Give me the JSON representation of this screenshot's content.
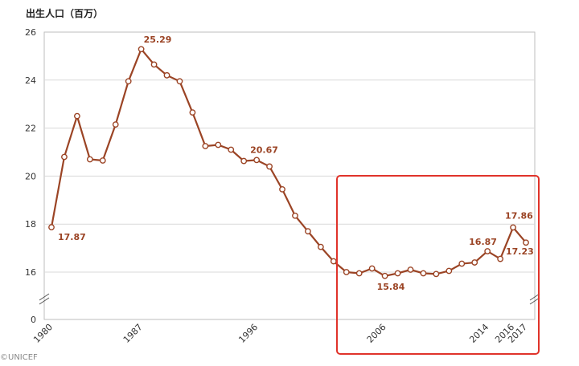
{
  "chart_data": {
    "type": "line",
    "ylabel": "出生人口（百万）",
    "x": [
      1980,
      1981,
      1982,
      1983,
      1984,
      1985,
      1986,
      1987,
      1988,
      1989,
      1990,
      1991,
      1992,
      1993,
      1994,
      1995,
      1996,
      1997,
      1998,
      1999,
      2000,
      2001,
      2002,
      2003,
      2004,
      2005,
      2006,
      2007,
      2008,
      2009,
      2010,
      2011,
      2012,
      2013,
      2014,
      2015,
      2016,
      2017
    ],
    "series": [
      {
        "values": [
          17.87,
          20.8,
          22.5,
          20.7,
          20.65,
          22.15,
          23.95,
          25.29,
          24.65,
          24.2,
          23.95,
          22.65,
          21.25,
          21.3,
          21.1,
          20.63,
          20.67,
          20.4,
          19.45,
          18.35,
          17.7,
          17.05,
          16.45,
          16.0,
          15.95,
          16.15,
          15.84,
          15.95,
          16.1,
          15.95,
          15.92,
          16.05,
          16.35,
          16.4,
          16.87,
          16.55,
          17.86,
          17.23
        ],
        "color": "#9b4425"
      }
    ],
    "x_tick_labels": [
      "1980",
      "1987",
      "1996",
      "2006",
      "2014",
      "2016",
      "2017"
    ],
    "y_tick_labels": [
      "0",
      "16",
      "18",
      "20",
      "22",
      "24",
      "26"
    ],
    "ylim": [
      16,
      26
    ],
    "y_axis_break": true,
    "grid": "horizontal",
    "annotations": [
      {
        "x": 1980,
        "y": 17.87,
        "text": "17.87"
      },
      {
        "x": 1987,
        "y": 25.29,
        "text": "25.29"
      },
      {
        "x": 1996,
        "y": 20.67,
        "text": "20.67"
      },
      {
        "x": 2006,
        "y": 15.84,
        "text": "15.84"
      },
      {
        "x": 2014,
        "y": 16.87,
        "text": "16.87"
      },
      {
        "x": 2016,
        "y": 17.86,
        "text": "17.86"
      },
      {
        "x": 2017,
        "y": 17.23,
        "text": "17.23"
      }
    ],
    "highlight_box": {
      "x_range": [
        2003,
        2017
      ],
      "color": "#e0332a"
    }
  },
  "footer_text": "©UNICEF"
}
